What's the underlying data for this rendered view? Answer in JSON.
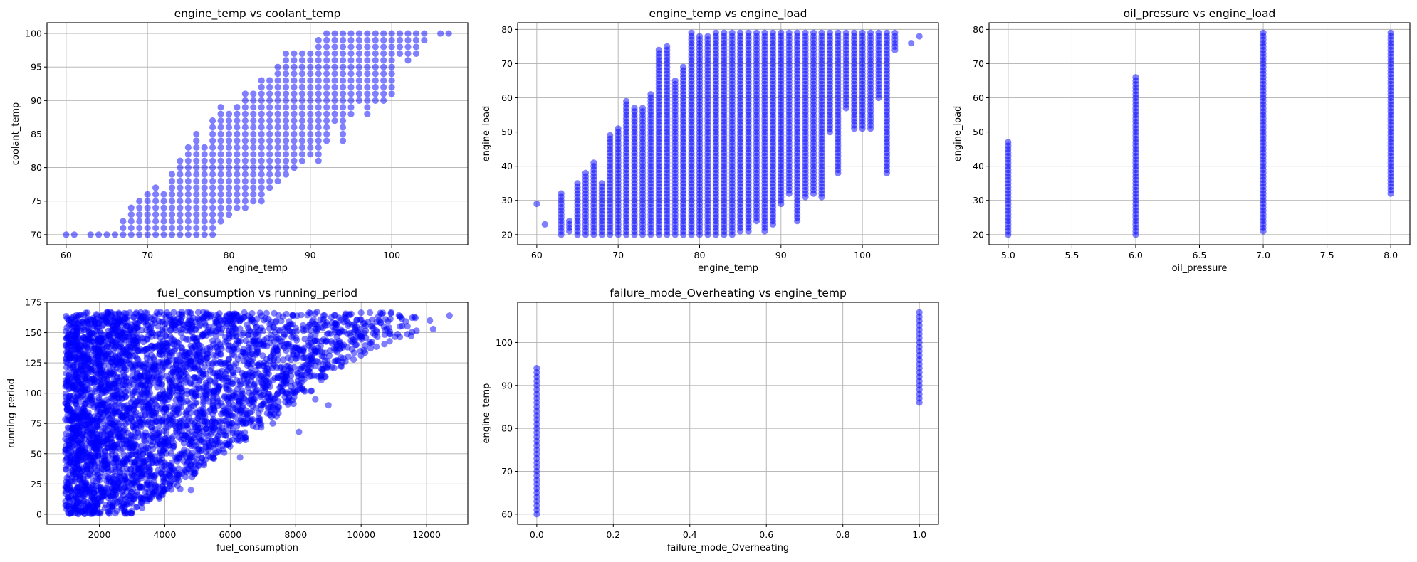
{
  "chart_data": [
    {
      "type": "scatter",
      "title": "engine_temp vs coolant_temp",
      "xlabel": "engine_temp",
      "ylabel": "coolant_temp",
      "xlim": [
        57.65,
        109.35
      ],
      "ylim": [
        68.5,
        101.6
      ],
      "xticks": [
        60,
        70,
        80,
        90,
        100
      ],
      "xtick_labels": [
        "60",
        "70",
        "80",
        "90",
        "100"
      ],
      "yticks": [
        70,
        75,
        80,
        85,
        90,
        95,
        100
      ],
      "ytick_labels": [
        "70",
        "75",
        "80",
        "85",
        "90",
        "95",
        "100"
      ],
      "grid": true,
      "color": "#0000ff",
      "alpha": 0.5,
      "point_columns_note": "x, y_min, y_max (integer-valued y)",
      "columns": [
        [
          60,
          70,
          70
        ],
        [
          61,
          70,
          70
        ],
        [
          63,
          70,
          70
        ],
        [
          64,
          70,
          70
        ],
        [
          65,
          70,
          70
        ],
        [
          66,
          70,
          70
        ],
        [
          67,
          70,
          72
        ],
        [
          68,
          70,
          74
        ],
        [
          69,
          70,
          75
        ],
        [
          70,
          70,
          76
        ],
        [
          71,
          70,
          77
        ],
        [
          72,
          70,
          76
        ],
        [
          73,
          70,
          79
        ],
        [
          74,
          70,
          81
        ],
        [
          75,
          70,
          83
        ],
        [
          76,
          70,
          85
        ],
        [
          77,
          70,
          83
        ],
        [
          78,
          70,
          87
        ],
        [
          79,
          72,
          89
        ],
        [
          80,
          73,
          88
        ],
        [
          81,
          74,
          89
        ],
        [
          82,
          74,
          91
        ],
        [
          83,
          75,
          91
        ],
        [
          84,
          75,
          93
        ],
        [
          85,
          77,
          93
        ],
        [
          86,
          78,
          95
        ],
        [
          87,
          79,
          97
        ],
        [
          88,
          80,
          97
        ],
        [
          89,
          81,
          97
        ],
        [
          90,
          82,
          97
        ],
        [
          91,
          81,
          99
        ],
        [
          92,
          84,
          100
        ],
        [
          93,
          87,
          100
        ],
        [
          94,
          84,
          100
        ],
        [
          95,
          88,
          100
        ],
        [
          96,
          90,
          100
        ],
        [
          97,
          88,
          100
        ],
        [
          98,
          90,
          100
        ],
        [
          99,
          90,
          100
        ],
        [
          100,
          91,
          100
        ],
        [
          101,
          97,
          100
        ],
        [
          102,
          96,
          100
        ],
        [
          103,
          97,
          100
        ],
        [
          104,
          99,
          100
        ],
        [
          106,
          100,
          100
        ],
        [
          107,
          100,
          100
        ]
      ]
    },
    {
      "type": "scatter",
      "title": "engine_temp vs engine_load",
      "xlabel": "engine_temp",
      "ylabel": "engine_load",
      "xlim": [
        57.65,
        109.35
      ],
      "ylim": [
        17.05,
        81.95
      ],
      "xticks": [
        60,
        70,
        80,
        90,
        100
      ],
      "xtick_labels": [
        "60",
        "70",
        "80",
        "90",
        "100"
      ],
      "yticks": [
        20,
        30,
        40,
        50,
        60,
        70,
        80
      ],
      "ytick_labels": [
        "20",
        "30",
        "40",
        "50",
        "60",
        "70",
        "80"
      ],
      "grid": true,
      "color": "#0000ff",
      "alpha": 0.5,
      "columns": [
        [
          60,
          29,
          29
        ],
        [
          61,
          23,
          23
        ],
        [
          63,
          20,
          32
        ],
        [
          64,
          21,
          24
        ],
        [
          65,
          20,
          35
        ],
        [
          66,
          20,
          38
        ],
        [
          67,
          20,
          41
        ],
        [
          68,
          20,
          35
        ],
        [
          69,
          20,
          49
        ],
        [
          70,
          20,
          51
        ],
        [
          71,
          20,
          59
        ],
        [
          72,
          20,
          57
        ],
        [
          73,
          20,
          57
        ],
        [
          74,
          20,
          61
        ],
        [
          75,
          20,
          74
        ],
        [
          76,
          20,
          75
        ],
        [
          77,
          20,
          65
        ],
        [
          78,
          20,
          69
        ],
        [
          79,
          20,
          79
        ],
        [
          80,
          20,
          78
        ],
        [
          81,
          20,
          78
        ],
        [
          82,
          20,
          79
        ],
        [
          83,
          20,
          79
        ],
        [
          84,
          20,
          79
        ],
        [
          85,
          21,
          79
        ],
        [
          86,
          21,
          79
        ],
        [
          87,
          24,
          79
        ],
        [
          88,
          21,
          79
        ],
        [
          89,
          23,
          79
        ],
        [
          90,
          29,
          79
        ],
        [
          91,
          32,
          79
        ],
        [
          92,
          24,
          79
        ],
        [
          93,
          31,
          79
        ],
        [
          94,
          32,
          79
        ],
        [
          95,
          31,
          79
        ],
        [
          96,
          50,
          79
        ],
        [
          97,
          38,
          79
        ],
        [
          98,
          57,
          79
        ],
        [
          99,
          51,
          79
        ],
        [
          100,
          51,
          79
        ],
        [
          101,
          51,
          79
        ],
        [
          102,
          60,
          79
        ],
        [
          103,
          38,
          79
        ],
        [
          104,
          74,
          79
        ],
        [
          106,
          76,
          76
        ],
        [
          107,
          78,
          78
        ]
      ]
    },
    {
      "type": "scatter",
      "title": "oil_pressure vs engine_load",
      "xlabel": "oil_pressure",
      "ylabel": "engine_load",
      "xlim": [
        4.85,
        8.15
      ],
      "ylim": [
        17.05,
        81.95
      ],
      "xticks": [
        5.0,
        5.5,
        6.0,
        6.5,
        7.0,
        7.5,
        8.0
      ],
      "xtick_labels": [
        "5.0",
        "5.5",
        "6.0",
        "6.5",
        "7.0",
        "7.5",
        "8.0"
      ],
      "yticks": [
        20,
        30,
        40,
        50,
        60,
        70,
        80
      ],
      "ytick_labels": [
        "20",
        "30",
        "40",
        "50",
        "60",
        "70",
        "80"
      ],
      "grid": true,
      "color": "#0000ff",
      "alpha": 0.5,
      "columns": [
        [
          5,
          20,
          47
        ],
        [
          6,
          20,
          66
        ],
        [
          7,
          21,
          79
        ],
        [
          8,
          32,
          79
        ]
      ]
    },
    {
      "type": "scatter",
      "title": "fuel_consumption vs running_period",
      "xlabel": "fuel_consumption",
      "ylabel": "running_period",
      "xlim": [
        400,
        13260
      ],
      "ylim": [
        -8.3,
        175
      ],
      "xticks": [
        2000,
        4000,
        6000,
        8000,
        10000,
        12000
      ],
      "xtick_labels": [
        "2000",
        "4000",
        "6000",
        "8000",
        "10000",
        "12000"
      ],
      "yticks": [
        0,
        25,
        50,
        75,
        100,
        125,
        150,
        175
      ],
      "ytick_labels": [
        "0",
        "25",
        "50",
        "75",
        "100",
        "125",
        "150",
        "175"
      ],
      "grid": true,
      "color": "#0000ff",
      "alpha": 0.5,
      "density_bins_note": "x_from, x_to, y_min, y_max, approx_count",
      "bins": [
        [
          960,
          1500,
          0,
          165,
          520
        ],
        [
          1500,
          2000,
          0,
          167,
          420
        ],
        [
          2000,
          2500,
          0,
          167,
          380
        ],
        [
          2500,
          3000,
          0,
          167,
          330
        ],
        [
          3000,
          3500,
          5,
          167,
          290
        ],
        [
          3500,
          4000,
          12,
          167,
          260
        ],
        [
          4000,
          4500,
          20,
          167,
          230
        ],
        [
          4500,
          5000,
          30,
          167,
          210
        ],
        [
          5000,
          5500,
          40,
          167,
          190
        ],
        [
          5500,
          6000,
          50,
          167,
          170
        ],
        [
          6000,
          6500,
          60,
          167,
          150
        ],
        [
          6500,
          7000,
          70,
          167,
          130
        ],
        [
          7000,
          7500,
          80,
          167,
          115
        ],
        [
          7500,
          8000,
          90,
          167,
          100
        ],
        [
          8000,
          8500,
          100,
          167,
          85
        ],
        [
          8500,
          9000,
          110,
          167,
          70
        ],
        [
          9000,
          9500,
          120,
          167,
          55
        ],
        [
          9500,
          10000,
          125,
          167,
          45
        ],
        [
          10000,
          10500,
          130,
          167,
          30
        ],
        [
          10500,
          11000,
          140,
          167,
          22
        ],
        [
          11000,
          11700,
          145,
          167,
          18
        ]
      ],
      "outliers": [
        [
          12100,
          160
        ],
        [
          12200,
          153
        ],
        [
          12700,
          164
        ],
        [
          8100,
          68
        ],
        [
          5400,
          47
        ],
        [
          4800,
          20
        ],
        [
          6300,
          47
        ],
        [
          9000,
          90
        ],
        [
          8600,
          95
        ],
        [
          7300,
          75
        ]
      ]
    },
    {
      "type": "scatter",
      "title": "failure_mode_Overheating vs engine_temp",
      "xlabel": "failure_mode_Overheating",
      "ylabel": "engine_temp",
      "xlim": [
        -0.05,
        1.05
      ],
      "ylim": [
        57.65,
        109.35
      ],
      "xticks": [
        0.0,
        0.2,
        0.4,
        0.6,
        0.8,
        1.0
      ],
      "xtick_labels": [
        "0.0",
        "0.2",
        "0.4",
        "0.6",
        "0.8",
        "1.0"
      ],
      "yticks": [
        60,
        70,
        80,
        90,
        100
      ],
      "ytick_labels": [
        "60",
        "70",
        "80",
        "90",
        "100"
      ],
      "grid": true,
      "color": "#0000ff",
      "alpha": 0.5,
      "columns": [
        [
          0,
          60,
          94
        ],
        [
          1,
          86,
          107
        ]
      ]
    }
  ]
}
